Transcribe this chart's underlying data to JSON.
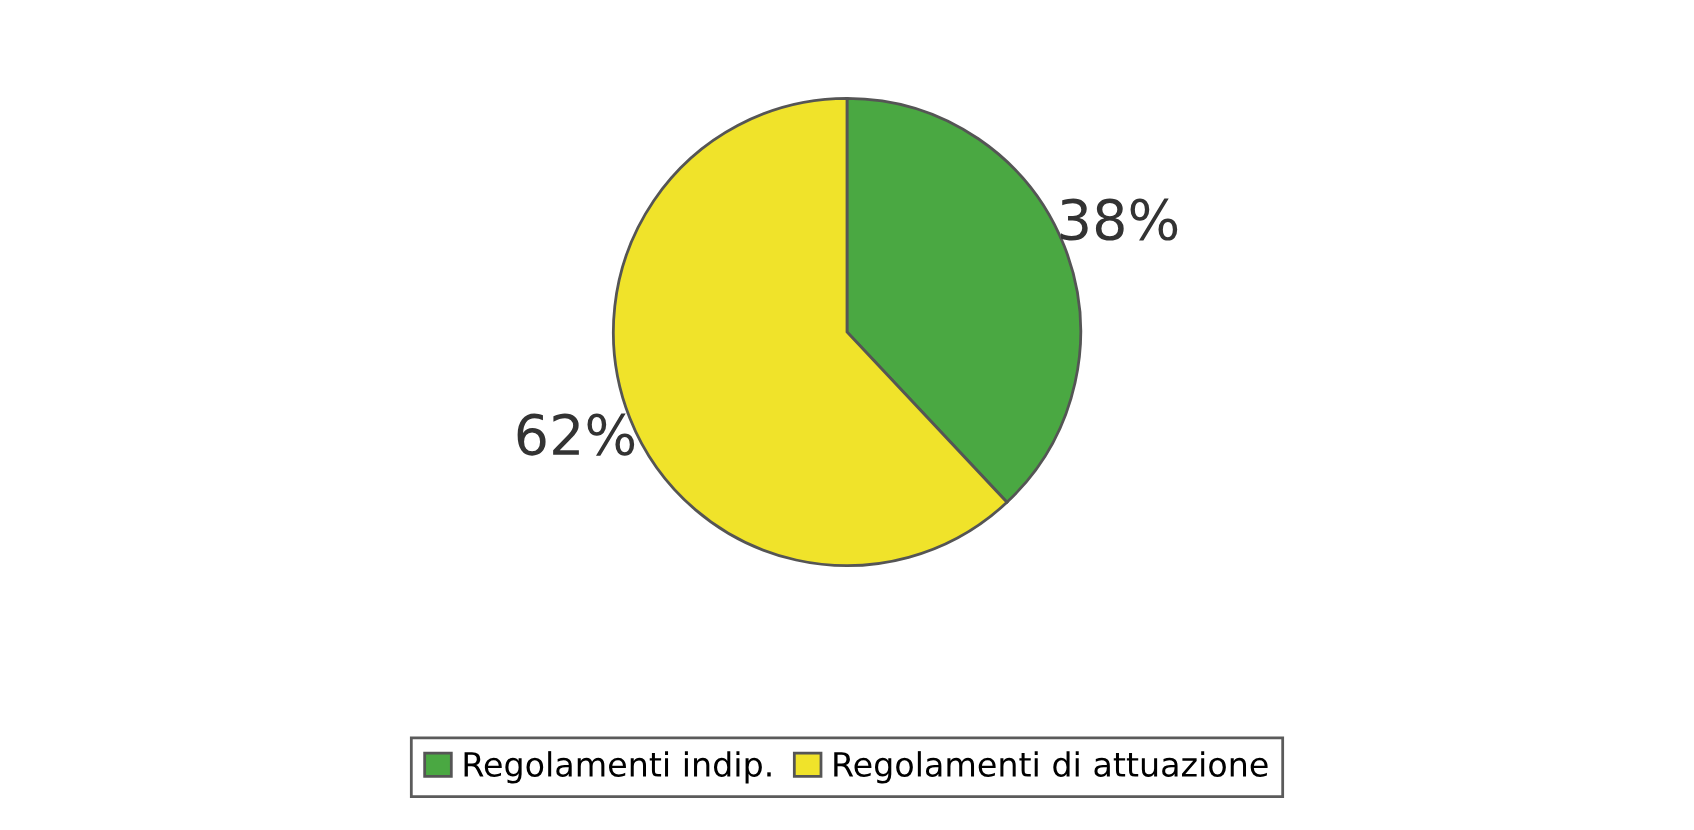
{
  "chart_data": {
    "type": "pie",
    "categories": [
      "Regolamenti indip.",
      "Regolamenti di attuazione"
    ],
    "values": [
      38,
      62
    ],
    "colors": [
      "#4aa842",
      "#f0e32a"
    ],
    "value_labels": [
      "38%",
      "62%"
    ],
    "legend": "bottom"
  }
}
